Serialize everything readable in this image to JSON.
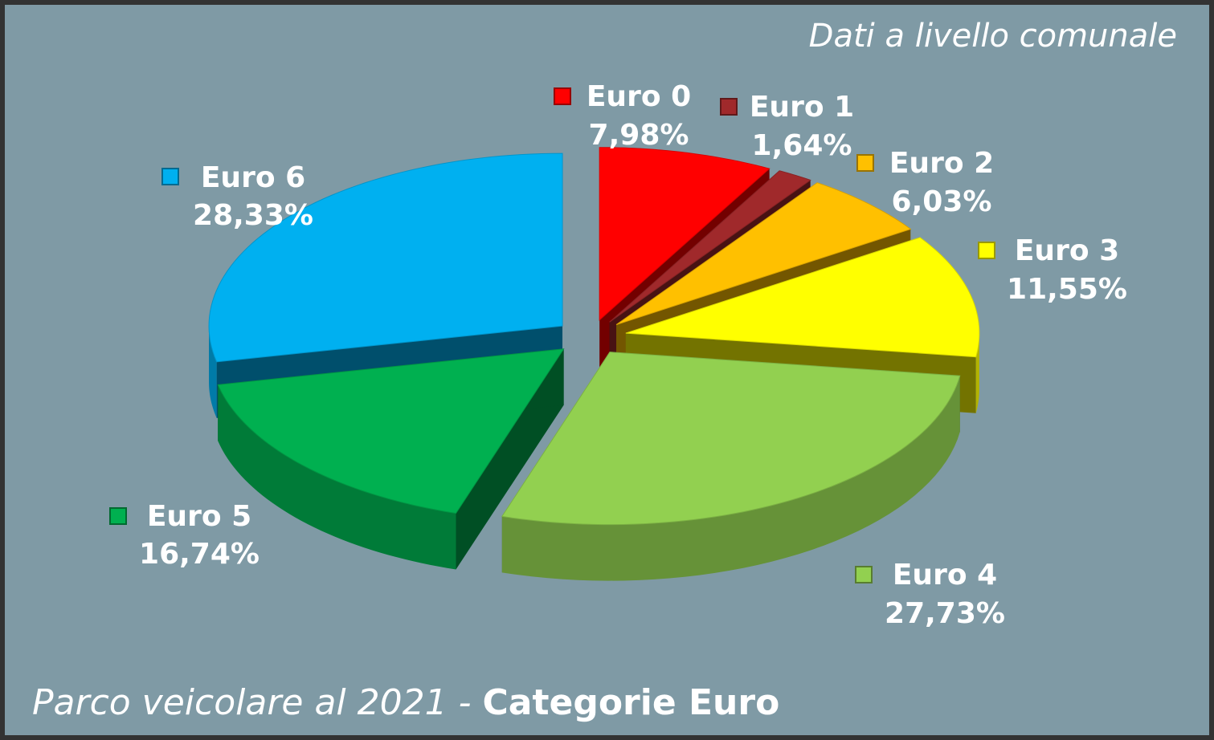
{
  "chart_data": {
    "type": "pie",
    "title": "Parco veicolare al 2021 - ",
    "title_bold": "Categorie Euro",
    "annotation": "Dati a livello comunale",
    "categories": [
      "Euro 0",
      "Euro 1",
      "Euro 2",
      "Euro 3",
      "Euro 4",
      "Euro 5",
      "Euro 6"
    ],
    "values": [
      7.98,
      1.64,
      6.03,
      11.55,
      27.73,
      16.74,
      28.33
    ],
    "value_labels": [
      "7,98%",
      "1,64%",
      "6,03%",
      "11,55%",
      "27,73%",
      "16,74%",
      "28,33%"
    ],
    "colors": [
      "#ff0000",
      "#a0292b",
      "#ffc000",
      "#ffff00",
      "#92d050",
      "#00b050",
      "#00b0f0"
    ]
  }
}
